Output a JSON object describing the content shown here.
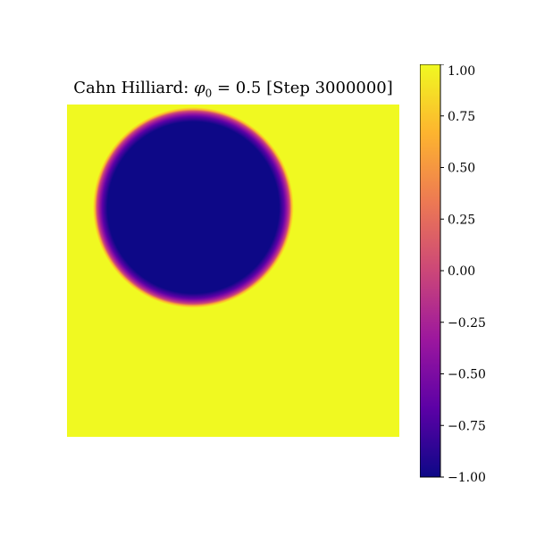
{
  "chart_data": {
    "type": "heatmap",
    "title": {
      "prefix": "Cahn Hilliard: ",
      "symbol": "φ",
      "subscript": "0",
      "suffix": " = 0.5 [Step 3000000]"
    },
    "xlabel": "",
    "ylabel": "",
    "colormap": "plasma",
    "value_range": [
      -1.0,
      1.0
    ],
    "field_description_values": {
      "background_value": 1.0,
      "droplet_value": -1.0,
      "droplet_center_fraction": [
        0.38,
        0.31
      ],
      "droplet_radius_fraction": 0.28,
      "interface_width_fraction": 0.022
    },
    "colorbar": {
      "ticks": [
        "1.00",
        "0.75",
        "0.50",
        "0.25",
        "0.00",
        "−0.25",
        "−0.50",
        "−0.75",
        "−1.00"
      ],
      "tick_values": [
        1.0,
        0.75,
        0.5,
        0.25,
        0.0,
        -0.25,
        -0.5,
        -0.75,
        -1.0
      ],
      "colors": [
        "#f0f921",
        "#fdb42f",
        "#ed7953",
        "#cc4778",
        "#9c179e",
        "#5c01a6",
        "#0d0887"
      ]
    }
  }
}
